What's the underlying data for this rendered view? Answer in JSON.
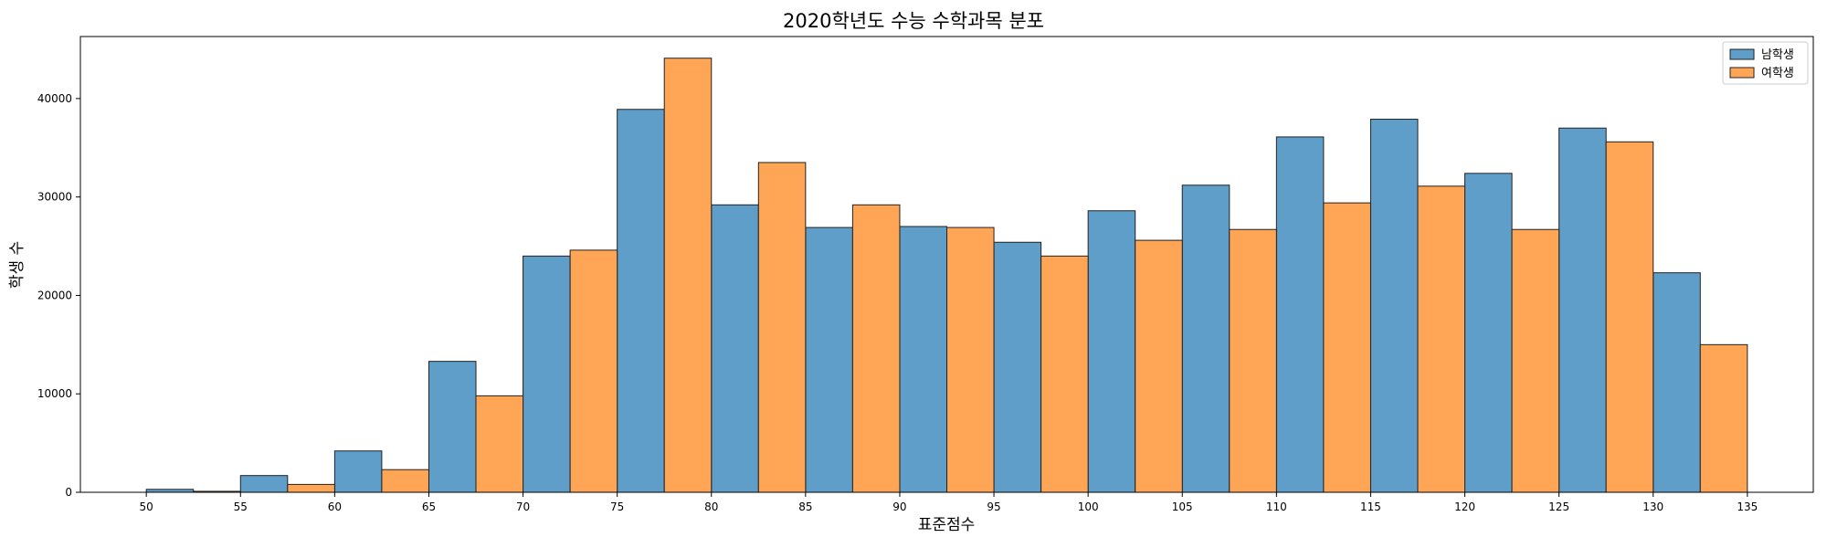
{
  "chart_data": {
    "type": "bar",
    "title": "2020학년도 수능 수학과목 분포",
    "xlabel": "표준점수",
    "ylabel": "학생 수",
    "bins": [
      50,
      55,
      60,
      65,
      70,
      75,
      80,
      85,
      90,
      95,
      100,
      105,
      110,
      115,
      120,
      125,
      130
    ],
    "bin_width": 5,
    "xlim": [
      46.5,
      138.5
    ],
    "ylim": [
      0,
      46300
    ],
    "x_ticks": [
      "50",
      "55",
      "60",
      "65",
      "70",
      "75",
      "80",
      "85",
      "90",
      "95",
      "100",
      "105",
      "110",
      "115",
      "120",
      "125",
      "130",
      "135"
    ],
    "y_ticks": [
      "0",
      "10000",
      "20000",
      "30000",
      "40000"
    ],
    "grid": false,
    "legend_position": "top-right",
    "series": [
      {
        "name": "남학생",
        "color": "#5f9ec9",
        "values": [
          300,
          1700,
          4200,
          13300,
          24000,
          38900,
          29200,
          26900,
          27000,
          25400,
          28600,
          31200,
          36100,
          37900,
          32400,
          37000,
          22300
        ]
      },
      {
        "name": "여학생",
        "color": "#ffa556",
        "values": [
          100,
          800,
          2300,
          9800,
          24600,
          44100,
          33500,
          29200,
          26900,
          24000,
          25600,
          26700,
          29400,
          31100,
          26700,
          35600,
          15000
        ]
      }
    ]
  }
}
